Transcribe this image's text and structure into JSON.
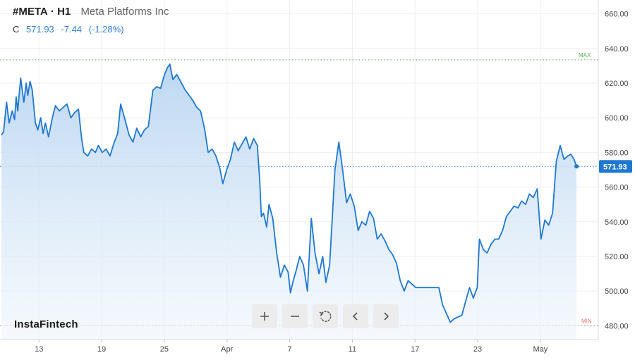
{
  "header": {
    "ticker": "#META",
    "separator": "·",
    "timeframe": "H1",
    "company": "Meta Platforms Inc",
    "close_label": "C",
    "close_value": "571.93",
    "change": "-7.44",
    "change_pct": "(-1.28%)"
  },
  "brand": {
    "name": "InstaFintech"
  },
  "toolbar": {
    "icons": [
      "plus-icon",
      "minus-icon",
      "reset-icon",
      "chevron-left-icon",
      "chevron-right-icon"
    ]
  },
  "colors": {
    "line": "#1e78d2",
    "fill_top": "#b9d5f2",
    "max_line": "#4caf50",
    "min_line": "#e57373",
    "price_tag": "#1e78d2",
    "grid": "#eeeeee"
  },
  "chart_data": {
    "type": "area",
    "title": "",
    "xlabel": "",
    "ylabel": "",
    "ylim": [
      472,
      668
    ],
    "y_ticks": [
      "660.00",
      "640.00",
      "620.00",
      "600.00",
      "580.00",
      "560.00",
      "540.00",
      "520.00",
      "500.00",
      "480.00"
    ],
    "y_tick_values": [
      660,
      640,
      620,
      600,
      580,
      560,
      540,
      520,
      500,
      480
    ],
    "x_ticks": [
      {
        "label": "13",
        "x": 4.0
      },
      {
        "label": "19",
        "x": 8.0
      },
      {
        "label": "25",
        "x": 12.0
      },
      {
        "label": "Apr",
        "x": 16.0
      },
      {
        "label": "7",
        "x": 20.0
      },
      {
        "label": "11",
        "x": 24.0
      },
      {
        "label": "17",
        "x": 28.0
      },
      {
        "label": "23",
        "x": 32.0
      },
      {
        "label": "May",
        "x": 36.0
      }
    ],
    "x_range": [
      1.6,
      39.7
    ],
    "max_level": {
      "label": "MAX",
      "value": 633.5
    },
    "min_level": {
      "label": "MIN",
      "value": 480
    },
    "last_price": {
      "label": "571.93",
      "value": 571.93
    },
    "grid": true,
    "series": [
      {
        "values": [
          [
            1.6,
            590
          ],
          [
            1.74,
            592
          ],
          [
            1.93,
            609
          ],
          [
            2.09,
            597
          ],
          [
            2.29,
            604
          ],
          [
            2.44,
            599
          ],
          [
            2.54,
            612
          ],
          [
            2.64,
            604
          ],
          [
            2.83,
            623
          ],
          [
            3.03,
            609
          ],
          [
            3.18,
            620
          ],
          [
            3.28,
            613
          ],
          [
            3.43,
            621
          ],
          [
            3.57,
            616
          ],
          [
            3.77,
            597
          ],
          [
            3.92,
            593
          ],
          [
            4.11,
            600
          ],
          [
            4.26,
            591
          ],
          [
            4.41,
            597
          ],
          [
            4.61,
            589
          ],
          [
            4.85,
            600
          ],
          [
            5.05,
            607
          ],
          [
            5.3,
            604
          ],
          [
            5.54,
            606
          ],
          [
            5.79,
            608
          ],
          [
            6.03,
            600
          ],
          [
            6.28,
            603
          ],
          [
            6.52,
            605
          ],
          [
            6.72,
            588
          ],
          [
            6.86,
            580
          ],
          [
            7.11,
            578
          ],
          [
            7.35,
            582
          ],
          [
            7.6,
            580
          ],
          [
            7.79,
            584
          ],
          [
            8.04,
            580
          ],
          [
            8.28,
            582
          ],
          [
            8.53,
            578
          ],
          [
            8.77,
            585
          ],
          [
            9.02,
            591
          ],
          [
            9.21,
            608
          ],
          [
            9.46,
            600
          ],
          [
            9.75,
            590
          ],
          [
            10.0,
            586
          ],
          [
            10.24,
            594
          ],
          [
            10.49,
            589
          ],
          [
            10.73,
            593
          ],
          [
            10.98,
            595
          ],
          [
            11.27,
            616
          ],
          [
            11.52,
            618
          ],
          [
            11.76,
            617
          ],
          [
            12.01,
            625
          ],
          [
            12.2,
            629
          ],
          [
            12.35,
            631
          ],
          [
            12.55,
            622
          ],
          [
            12.79,
            625
          ],
          [
            13.04,
            621
          ],
          [
            13.33,
            616
          ],
          [
            13.58,
            613
          ],
          [
            13.82,
            610
          ],
          [
            14.07,
            606
          ],
          [
            14.31,
            604
          ],
          [
            14.56,
            594
          ],
          [
            14.8,
            580
          ],
          [
            15.05,
            582
          ],
          [
            15.29,
            578
          ],
          [
            15.54,
            571
          ],
          [
            15.73,
            562
          ],
          [
            15.98,
            570
          ],
          [
            16.22,
            576
          ],
          [
            16.47,
            586
          ],
          [
            16.71,
            581
          ],
          [
            16.96,
            585
          ],
          [
            17.21,
            589
          ],
          [
            17.45,
            582
          ],
          [
            17.7,
            588
          ],
          [
            17.94,
            584
          ],
          [
            18.09,
            563
          ],
          [
            18.19,
            543
          ],
          [
            18.33,
            545
          ],
          [
            18.53,
            537
          ],
          [
            18.68,
            550
          ],
          [
            18.92,
            542
          ],
          [
            19.17,
            522
          ],
          [
            19.41,
            508
          ],
          [
            19.66,
            515
          ],
          [
            19.9,
            511
          ],
          [
            20.05,
            499
          ],
          [
            20.2,
            505
          ],
          [
            20.39,
            511
          ],
          [
            20.64,
            520
          ],
          [
            20.88,
            515
          ],
          [
            21.13,
            500
          ],
          [
            21.38,
            542
          ],
          [
            21.62,
            522
          ],
          [
            21.87,
            510
          ],
          [
            22.11,
            520
          ],
          [
            22.31,
            505
          ],
          [
            22.55,
            515
          ],
          [
            22.75,
            547
          ],
          [
            22.89,
            570
          ],
          [
            23.14,
            586
          ],
          [
            23.38,
            570
          ],
          [
            23.63,
            551
          ],
          [
            23.87,
            556
          ],
          [
            24.12,
            549
          ],
          [
            24.37,
            535
          ],
          [
            24.61,
            540
          ],
          [
            24.86,
            538
          ],
          [
            25.1,
            546
          ],
          [
            25.35,
            542
          ],
          [
            25.59,
            530
          ],
          [
            25.84,
            533
          ],
          [
            26.08,
            529
          ],
          [
            26.33,
            524
          ],
          [
            26.57,
            521
          ],
          [
            26.82,
            516
          ],
          [
            27.06,
            506
          ],
          [
            27.31,
            500
          ],
          [
            27.56,
            506
          ],
          [
            27.8,
            504
          ],
          [
            28.05,
            502
          ],
          [
            28.29,
            502
          ],
          [
            28.54,
            502
          ],
          [
            28.78,
            502
          ],
          [
            29.03,
            502
          ],
          [
            29.27,
            502
          ],
          [
            29.52,
            502
          ],
          [
            29.76,
            492
          ],
          [
            30.01,
            487
          ],
          [
            30.25,
            482
          ],
          [
            30.5,
            484
          ],
          [
            30.74,
            485
          ],
          [
            30.99,
            486
          ],
          [
            31.23,
            494
          ],
          [
            31.48,
            502
          ],
          [
            31.72,
            496
          ],
          [
            31.97,
            502
          ],
          [
            32.11,
            530
          ],
          [
            32.36,
            524
          ],
          [
            32.6,
            522
          ],
          [
            32.85,
            527
          ],
          [
            33.1,
            530
          ],
          [
            33.34,
            530
          ],
          [
            33.59,
            535
          ],
          [
            33.83,
            543
          ],
          [
            34.08,
            546
          ],
          [
            34.32,
            549
          ],
          [
            34.57,
            548
          ],
          [
            34.81,
            552
          ],
          [
            35.06,
            550
          ],
          [
            35.3,
            556
          ],
          [
            35.55,
            554
          ],
          [
            35.8,
            559
          ],
          [
            36.04,
            530
          ],
          [
            36.29,
            541
          ],
          [
            36.53,
            538
          ],
          [
            36.78,
            545
          ],
          [
            37.02,
            575
          ],
          [
            37.27,
            584
          ],
          [
            37.51,
            576
          ],
          [
            37.76,
            578
          ],
          [
            37.95,
            579
          ],
          [
            38.15,
            576
          ],
          [
            38.31,
            572
          ]
        ]
      }
    ]
  }
}
